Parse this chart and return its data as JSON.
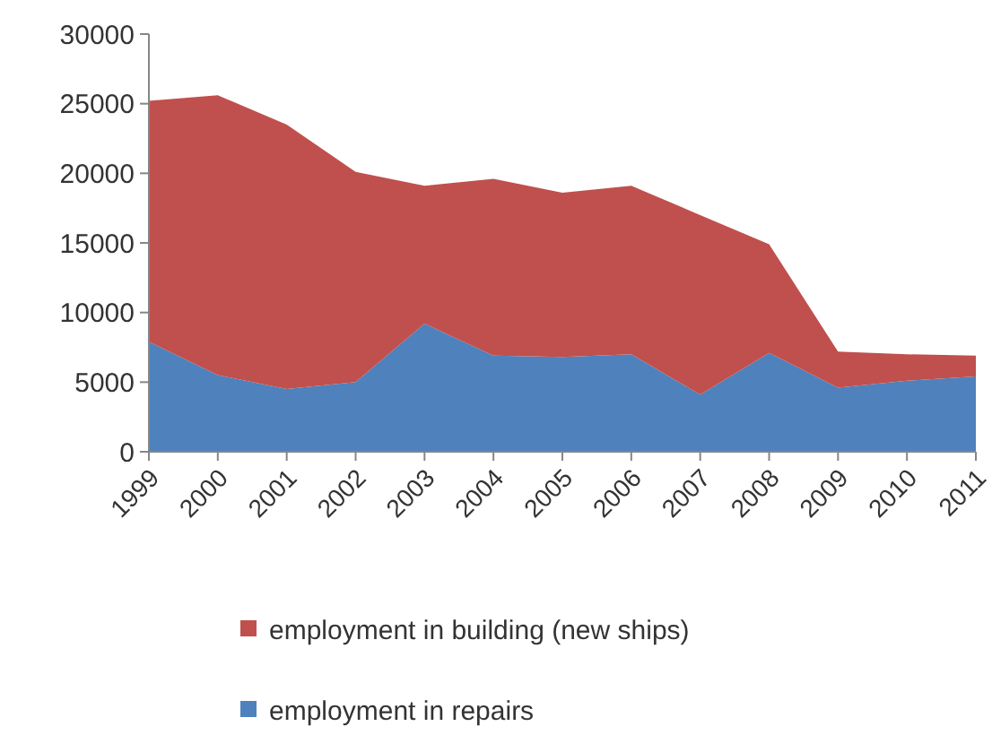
{
  "chart_data": {
    "type": "area",
    "stacked": true,
    "categories": [
      "1999",
      "2000",
      "2001",
      "2002",
      "2003",
      "2004",
      "2005",
      "2006",
      "2007",
      "2008",
      "2009",
      "2010",
      "2011"
    ],
    "series": [
      {
        "name": "employment in repairs",
        "color": "#4f81bd",
        "values": [
          7900,
          5500,
          4500,
          5000,
          9200,
          6900,
          6800,
          7000,
          4100,
          7100,
          4600,
          5100,
          5400
        ]
      },
      {
        "name": "employment in building (new ships)",
        "color": "#c0504d",
        "values": [
          17300,
          20100,
          19000,
          15100,
          9900,
          12700,
          11800,
          12100,
          12900,
          7800,
          2600,
          1900,
          1500
        ]
      }
    ],
    "ylim": [
      0,
      30000
    ],
    "yticks": [
      0,
      5000,
      10000,
      15000,
      20000,
      25000,
      30000
    ],
    "legend": "bottom",
    "grid": false
  }
}
